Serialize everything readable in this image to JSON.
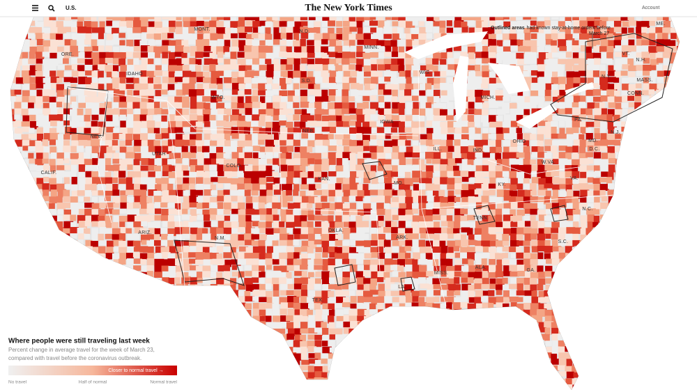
{
  "header": {
    "section": "U.S.",
    "logo": "The New York Times",
    "account": "Account"
  },
  "annotation": {
    "bold": "Outlined areas",
    "text": "had known stay-at-home orders before",
    "text2": "March 27"
  },
  "state_labels": [
    "ORE.",
    "IDAHO",
    "MONT.",
    "N.D.",
    "MINN.",
    "WIS.",
    "MICH.",
    "VT.",
    "N.H.",
    "ME.",
    "N.Y.",
    "MASS.",
    "CONN.",
    "WYO.",
    "S.D.",
    "IOWA",
    "NEB.",
    "PA.",
    "OHIO",
    "IND.",
    "ILL.",
    "NEV.",
    "UTAH",
    "COLO.",
    "KAN.",
    "MO.",
    "W.VA.",
    "VA.",
    "KY.",
    "MD.",
    "D.C.",
    "N.J.",
    "CALIF.",
    "ARIZ.",
    "N.M.",
    "OKLA.",
    "ARK.",
    "TENN.",
    "N.C.",
    "S.C.",
    "MISS.",
    "ALA.",
    "GA.",
    "TEX.",
    "LA."
  ],
  "legend": {
    "title": "Where people were still traveling last week",
    "subtitle": "Percent change in average travel for the week of March 23,",
    "subtitle2": "compared with travel before the coronavirus outbreak.",
    "bar_label": "Closer to normal travel →",
    "labels": [
      "No travel",
      "Half of normal",
      "Normal travel"
    ]
  }
}
